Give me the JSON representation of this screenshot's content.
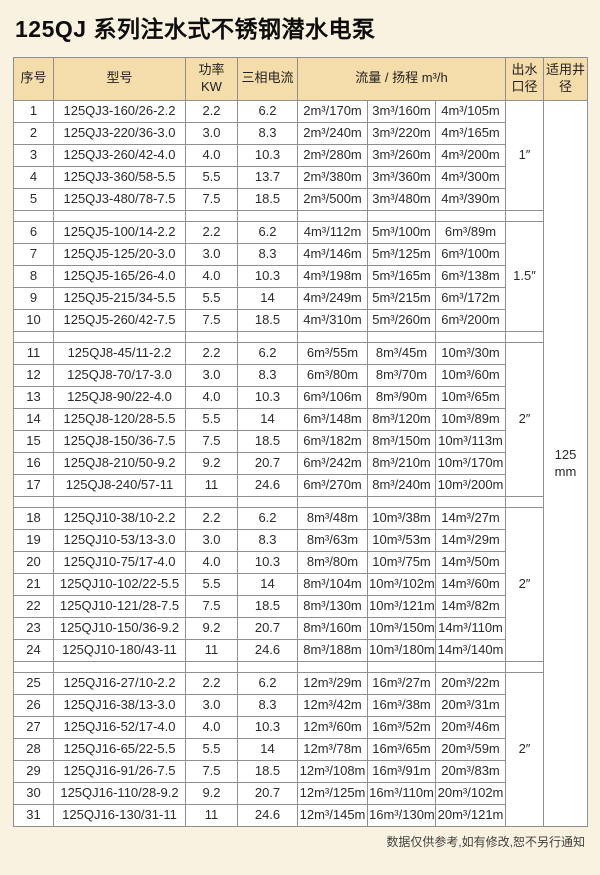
{
  "page": {
    "title": "125QJ 系列注水式不锈钢潜水电泵",
    "footer_note": "数据仅供参考,如有修改,恕不另行通知"
  },
  "colors": {
    "page_bg": "#faf2e0",
    "header_bg": "#f5dcab",
    "border": "#8f8f8f",
    "cell_bg": "#ffffff",
    "text": "#2b2b2b"
  },
  "table": {
    "headers": {
      "index": "序号",
      "model": "型号",
      "power": "功率 KW",
      "current": "三相电流",
      "flow": "流量 / 扬程 m³/h",
      "outlet": "出水口径",
      "well": "适用井径"
    },
    "well_diameter": "125 mm",
    "groups": [
      {
        "outlet": "1″",
        "rows": [
          {
            "no": "1",
            "model": "125QJ3-160/26-2.2",
            "power": "2.2",
            "current": "6.2",
            "flow": [
              "2m³/170m",
              "3m³/160m",
              "4m³/105m"
            ]
          },
          {
            "no": "2",
            "model": "125QJ3-220/36-3.0",
            "power": "3.0",
            "current": "8.3",
            "flow": [
              "2m³/240m",
              "3m³/220m",
              "4m³/165m"
            ]
          },
          {
            "no": "3",
            "model": "125QJ3-260/42-4.0",
            "power": "4.0",
            "current": "10.3",
            "flow": [
              "2m³/280m",
              "3m³/260m",
              "4m³/200m"
            ]
          },
          {
            "no": "4",
            "model": "125QJ3-360/58-5.5",
            "power": "5.5",
            "current": "13.7",
            "flow": [
              "2m³/380m",
              "3m³/360m",
              "4m³/300m"
            ]
          },
          {
            "no": "5",
            "model": "125QJ3-480/78-7.5",
            "power": "7.5",
            "current": "18.5",
            "flow": [
              "2m³/500m",
              "3m³/480m",
              "4m³/390m"
            ]
          }
        ]
      },
      {
        "outlet": "1.5″",
        "rows": [
          {
            "no": "6",
            "model": "125QJ5-100/14-2.2",
            "power": "2.2",
            "current": "6.2",
            "flow": [
              "4m³/112m",
              "5m³/100m",
              "6m³/89m"
            ]
          },
          {
            "no": "7",
            "model": "125QJ5-125/20-3.0",
            "power": "3.0",
            "current": "8.3",
            "flow": [
              "4m³/146m",
              "5m³/125m",
              "6m³/100m"
            ]
          },
          {
            "no": "8",
            "model": "125QJ5-165/26-4.0",
            "power": "4.0",
            "current": "10.3",
            "flow": [
              "4m³/198m",
              "5m³/165m",
              "6m³/138m"
            ]
          },
          {
            "no": "9",
            "model": "125QJ5-215/34-5.5",
            "power": "5.5",
            "current": "14",
            "flow": [
              "4m³/249m",
              "5m³/215m",
              "6m³/172m"
            ]
          },
          {
            "no": "10",
            "model": "125QJ5-260/42-7.5",
            "power": "7.5",
            "current": "18.5",
            "flow": [
              "4m³/310m",
              "5m³/260m",
              "6m³/200m"
            ]
          }
        ]
      },
      {
        "outlet": "2″",
        "rows": [
          {
            "no": "11",
            "model": "125QJ8-45/11-2.2",
            "power": "2.2",
            "current": "6.2",
            "flow": [
              "6m³/55m",
              "8m³/45m",
              "10m³/30m"
            ]
          },
          {
            "no": "12",
            "model": "125QJ8-70/17-3.0",
            "power": "3.0",
            "current": "8.3",
            "flow": [
              "6m³/80m",
              "8m³/70m",
              "10m³/60m"
            ]
          },
          {
            "no": "13",
            "model": "125QJ8-90/22-4.0",
            "power": "4.0",
            "current": "10.3",
            "flow": [
              "6m³/106m",
              "8m³/90m",
              "10m³/65m"
            ]
          },
          {
            "no": "14",
            "model": "125QJ8-120/28-5.5",
            "power": "5.5",
            "current": "14",
            "flow": [
              "6m³/148m",
              "8m³/120m",
              "10m³/89m"
            ]
          },
          {
            "no": "15",
            "model": "125QJ8-150/36-7.5",
            "power": "7.5",
            "current": "18.5",
            "flow": [
              "6m³/182m",
              "8m³/150m",
              "10m³/113m"
            ]
          },
          {
            "no": "16",
            "model": "125QJ8-210/50-9.2",
            "power": "9.2",
            "current": "20.7",
            "flow": [
              "6m³/242m",
              "8m³/210m",
              "10m³/170m"
            ]
          },
          {
            "no": "17",
            "model": "125QJ8-240/57-11",
            "power": "11",
            "current": "24.6",
            "flow": [
              "6m³/270m",
              "8m³/240m",
              "10m³/200m"
            ]
          }
        ]
      },
      {
        "outlet": "2″",
        "rows": [
          {
            "no": "18",
            "model": "125QJ10-38/10-2.2",
            "power": "2.2",
            "current": "6.2",
            "flow": [
              "8m³/48m",
              "10m³/38m",
              "14m³/27m"
            ]
          },
          {
            "no": "19",
            "model": "125QJ10-53/13-3.0",
            "power": "3.0",
            "current": "8.3",
            "flow": [
              "8m³/63m",
              "10m³/53m",
              "14m³/29m"
            ]
          },
          {
            "no": "20",
            "model": "125QJ10-75/17-4.0",
            "power": "4.0",
            "current": "10.3",
            "flow": [
              "8m³/80m",
              "10m³/75m",
              "14m³/50m"
            ]
          },
          {
            "no": "21",
            "model": "125QJ10-102/22-5.5",
            "power": "5.5",
            "current": "14",
            "flow": [
              "8m³/104m",
              "10m³/102m",
              "14m³/60m"
            ]
          },
          {
            "no": "22",
            "model": "125QJ10-121/28-7.5",
            "power": "7.5",
            "current": "18.5",
            "flow": [
              "8m³/130m",
              "10m³/121m",
              "14m³/82m"
            ]
          },
          {
            "no": "23",
            "model": "125QJ10-150/36-9.2",
            "power": "9.2",
            "current": "20.7",
            "flow": [
              "8m³/160m",
              "10m³/150m",
              "14m³/110m"
            ]
          },
          {
            "no": "24",
            "model": "125QJ10-180/43-11",
            "power": "11",
            "current": "24.6",
            "flow": [
              "8m³/188m",
              "10m³/180m",
              "14m³/140m"
            ]
          }
        ]
      },
      {
        "outlet": "2″",
        "rows": [
          {
            "no": "25",
            "model": "125QJ16-27/10-2.2",
            "power": "2.2",
            "current": "6.2",
            "flow": [
              "12m³/29m",
              "16m³/27m",
              "20m³/22m"
            ]
          },
          {
            "no": "26",
            "model": "125QJ16-38/13-3.0",
            "power": "3.0",
            "current": "8.3",
            "flow": [
              "12m³/42m",
              "16m³/38m",
              "20m³/31m"
            ]
          },
          {
            "no": "27",
            "model": "125QJ16-52/17-4.0",
            "power": "4.0",
            "current": "10.3",
            "flow": [
              "12m³/60m",
              "16m³/52m",
              "20m³/46m"
            ]
          },
          {
            "no": "28",
            "model": "125QJ16-65/22-5.5",
            "power": "5.5",
            "current": "14",
            "flow": [
              "12m³/78m",
              "16m³/65m",
              "20m³/59m"
            ]
          },
          {
            "no": "29",
            "model": "125QJ16-91/26-7.5",
            "power": "7.5",
            "current": "18.5",
            "flow": [
              "12m³/108m",
              "16m³/91m",
              "20m³/83m"
            ]
          },
          {
            "no": "30",
            "model": "125QJ16-110/28-9.2",
            "power": "9.2",
            "current": "20.7",
            "flow": [
              "12m³/125m",
              "16m³/110m",
              "20m³/102m"
            ]
          },
          {
            "no": "31",
            "model": "125QJ16-130/31-11",
            "power": "11",
            "current": "24.6",
            "flow": [
              "12m³/145m",
              "16m³/130m",
              "20m³/121m"
            ]
          }
        ]
      }
    ]
  }
}
